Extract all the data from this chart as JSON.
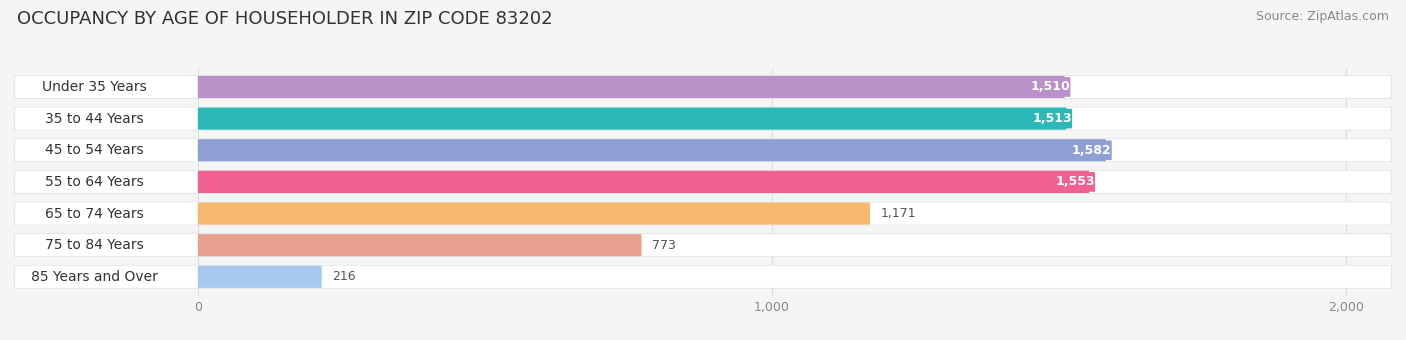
{
  "title": "OCCUPANCY BY AGE OF HOUSEHOLDER IN ZIP CODE 83202",
  "source": "Source: ZipAtlas.com",
  "categories": [
    "Under 35 Years",
    "35 to 44 Years",
    "45 to 54 Years",
    "55 to 64 Years",
    "65 to 74 Years",
    "75 to 84 Years",
    "85 Years and Over"
  ],
  "values": [
    1510,
    1513,
    1582,
    1553,
    1171,
    773,
    216
  ],
  "bar_colors": [
    "#b990c8",
    "#2db8b8",
    "#8e9fd4",
    "#f06090",
    "#f5b86e",
    "#e8a090",
    "#a8c8f0"
  ],
  "bar_label_colors": [
    "white",
    "white",
    "white",
    "white",
    "black",
    "black",
    "black"
  ],
  "xlim_max": 2000,
  "xticks": [
    0,
    1000,
    2000
  ],
  "xtick_labels": [
    "0",
    "1,000",
    "2,000"
  ],
  "background_color": "#f5f5f5",
  "bar_bg_color": "#ffffff",
  "title_fontsize": 13,
  "source_fontsize": 9,
  "label_fontsize": 10,
  "value_fontsize": 9,
  "tick_fontsize": 9
}
